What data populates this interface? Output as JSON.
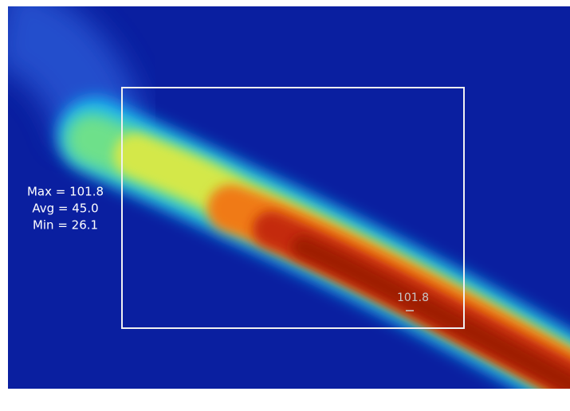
{
  "stats": [
    "Max = 101.8",
    "Avg = 45.0",
    "Min = 26.1"
  ],
  "hotspot_label": "101.8"
}
